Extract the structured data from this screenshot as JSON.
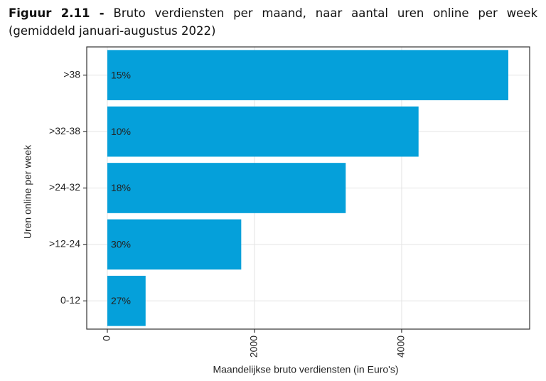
{
  "chart_data": {
    "type": "barh",
    "figure_label": "Figuur 2.11 -",
    "title": "Bruto verdiensten per maand, naar aantal uren online per week (gemiddeld januari-augustus 2022)",
    "x_label": "Maandelijkse bruto verdiensten (in Euro's)",
    "y_label": "Uren online per week",
    "categories": [
      ">38",
      ">32-38",
      ">24-32",
      ">12-24",
      "0-12"
    ],
    "values": [
      5450,
      4230,
      3240,
      1820,
      520
    ],
    "bar_labels": [
      "15%",
      "10%",
      "18%",
      "30%",
      "27%"
    ],
    "color": "#05a0da",
    "xlim": [
      -280,
      5740
    ],
    "xticks": [
      0,
      2000,
      4000
    ],
    "grid": true
  }
}
